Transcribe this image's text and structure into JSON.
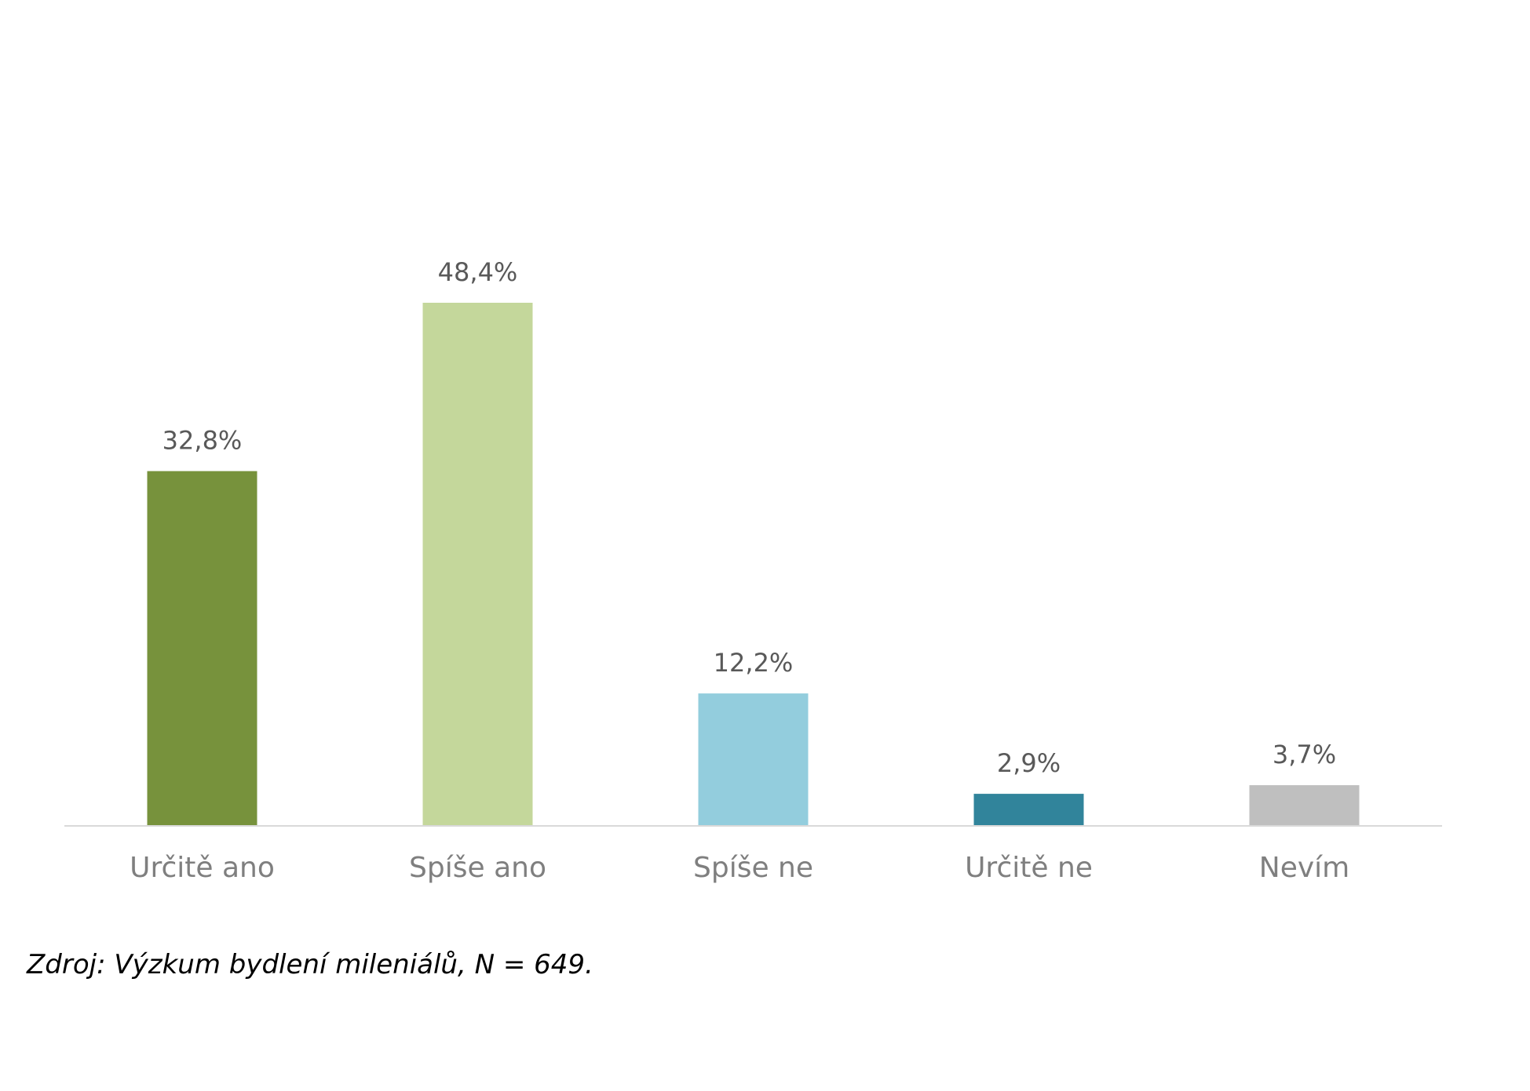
{
  "chart_data": {
    "type": "bar",
    "title": "",
    "xlabel": "",
    "ylabel": "",
    "categories": [
      "Určitě ano",
      "Spíše ano",
      "Spíše ne",
      "Určitě ne",
      "Nevím"
    ],
    "values": [
      32.8,
      48.4,
      12.2,
      2.9,
      3.7
    ],
    "value_labels": [
      "32,8%",
      "48,4%",
      "12,2%",
      "2,9%",
      "3,7%"
    ],
    "colors": [
      "#77923c",
      "#c4d79b",
      "#93cddd",
      "#31849b",
      "#bfbfbf"
    ],
    "ylim": [
      0,
      48.4
    ],
    "grid": false,
    "legend": "none",
    "axis_color": "#d9d9d9"
  },
  "source_note": "Zdroj: Výzkum bydlení mileniálů, N = 649."
}
